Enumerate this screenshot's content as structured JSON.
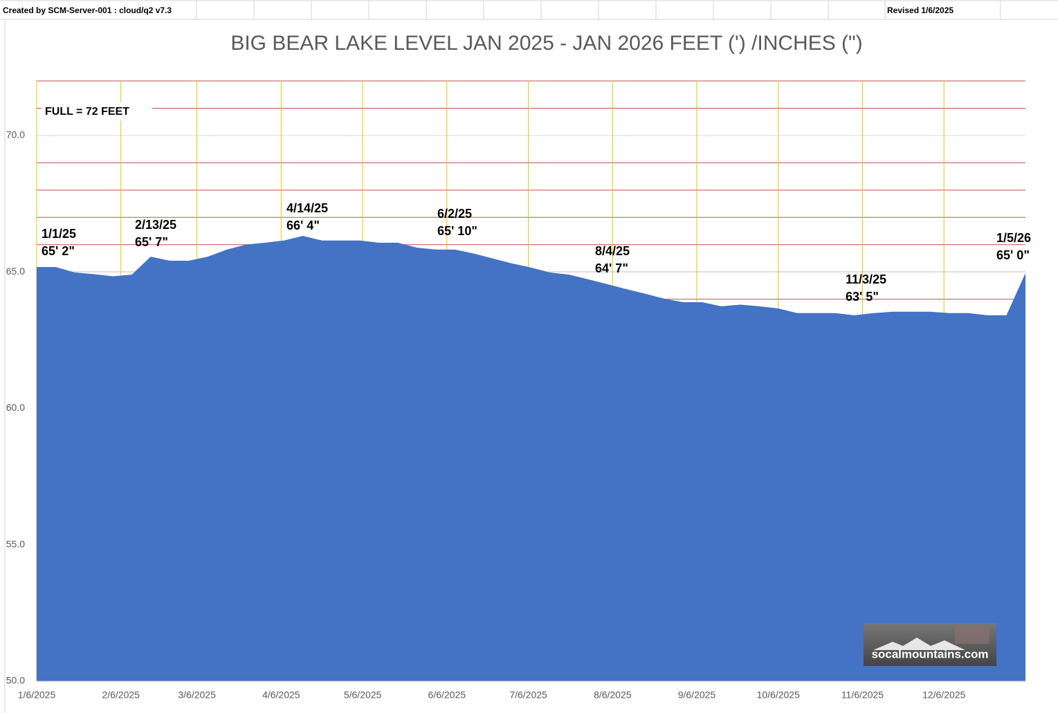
{
  "header": {
    "created": "Created by SCM-Server-001 : cloud/q2 v7.3",
    "revised": "Revised 1/6/2025"
  },
  "chart_data": {
    "type": "area",
    "title": "BIG BEAR LAKE LEVEL JAN 2025 - JAN 2026 FEET (') /INCHES (\")",
    "color": "#4472c4",
    "x": [
      "2025-01-06",
      "2025-01-13",
      "2025-01-20",
      "2025-01-27",
      "2025-02-03",
      "2025-02-10",
      "2025-02-17",
      "2025-02-24",
      "2025-03-03",
      "2025-03-10",
      "2025-03-17",
      "2025-03-24",
      "2025-03-31",
      "2025-04-07",
      "2025-04-14",
      "2025-04-21",
      "2025-04-28",
      "2025-05-05",
      "2025-05-12",
      "2025-05-19",
      "2025-05-26",
      "2025-06-02",
      "2025-06-09",
      "2025-06-16",
      "2025-06-23",
      "2025-06-30",
      "2025-07-07",
      "2025-07-14",
      "2025-07-21",
      "2025-07-28",
      "2025-08-04",
      "2025-08-11",
      "2025-08-18",
      "2025-08-25",
      "2025-09-01",
      "2025-09-08",
      "2025-09-15",
      "2025-09-22",
      "2025-09-29",
      "2025-10-06",
      "2025-10-13",
      "2025-10-20",
      "2025-10-27",
      "2025-11-03",
      "2025-11-10",
      "2025-11-17",
      "2025-11-24",
      "2025-12-01",
      "2025-12-08",
      "2025-12-15",
      "2025-12-22",
      "2025-12-29",
      "2026-01-05"
    ],
    "values": [
      65.18,
      65.18,
      64.98,
      64.92,
      64.84,
      64.9,
      65.56,
      65.41,
      65.41,
      65.56,
      65.82,
      66.0,
      66.07,
      66.15,
      66.32,
      66.15,
      66.15,
      66.15,
      66.07,
      66.07,
      65.89,
      65.82,
      65.82,
      65.67,
      65.49,
      65.31,
      65.16,
      64.98,
      64.9,
      64.73,
      64.55,
      64.37,
      64.2,
      64.02,
      63.89,
      63.89,
      63.74,
      63.8,
      63.74,
      63.66,
      63.49,
      63.49,
      63.49,
      63.41,
      63.49,
      63.54,
      63.54,
      63.54,
      63.49,
      63.49,
      63.41,
      63.41,
      64.96
    ],
    "xlim": [
      "2025-01-06",
      "2026-01-05"
    ],
    "xticks": [
      {
        "value": "2025-01-06",
        "label": "1/6/2025"
      },
      {
        "value": "2025-02-06",
        "label": "2/6/2025"
      },
      {
        "value": "2025-03-06",
        "label": "3/6/2025"
      },
      {
        "value": "2025-04-06",
        "label": "4/6/2025"
      },
      {
        "value": "2025-05-06",
        "label": "5/6/2025"
      },
      {
        "value": "2025-06-06",
        "label": "6/6/2025"
      },
      {
        "value": "2025-07-06",
        "label": "7/6/2025"
      },
      {
        "value": "2025-08-06",
        "label": "8/6/2025"
      },
      {
        "value": "2025-09-06",
        "label": "9/6/2025"
      },
      {
        "value": "2025-10-06",
        "label": "10/6/2025"
      },
      {
        "value": "2025-11-06",
        "label": "11/6/2025"
      },
      {
        "value": "2025-12-06",
        "label": "12/6/2025"
      }
    ],
    "ylim": [
      50,
      72
    ],
    "yticks": [
      {
        "value": 50,
        "label": "50.0"
      },
      {
        "value": 55,
        "label": "55.0"
      },
      {
        "value": 60,
        "label": "60.0"
      },
      {
        "value": 65,
        "label": "65.0"
      },
      {
        "value": 70,
        "label": "70.0"
      }
    ],
    "minor_yticks": [
      51,
      52,
      53,
      54,
      56,
      57,
      58,
      59,
      61,
      62,
      63,
      64,
      65,
      66,
      67,
      68,
      69,
      71,
      72
    ],
    "grid": true,
    "annotations": [
      [
        "1/1/25",
        "65' 2\""
      ],
      [
        "2/13/25",
        "65' 7\""
      ],
      [
        "4/14/25",
        "66' 4\""
      ],
      [
        "6/2/25",
        "65' 10\""
      ],
      [
        "8/4/25",
        "64' 7\""
      ],
      [
        "11/3/25",
        "63' 5\""
      ],
      [
        "1/5/26",
        "65' 0\""
      ]
    ],
    "note": "FULL = 72 FEET",
    "logo": "socalmountains.com"
  }
}
